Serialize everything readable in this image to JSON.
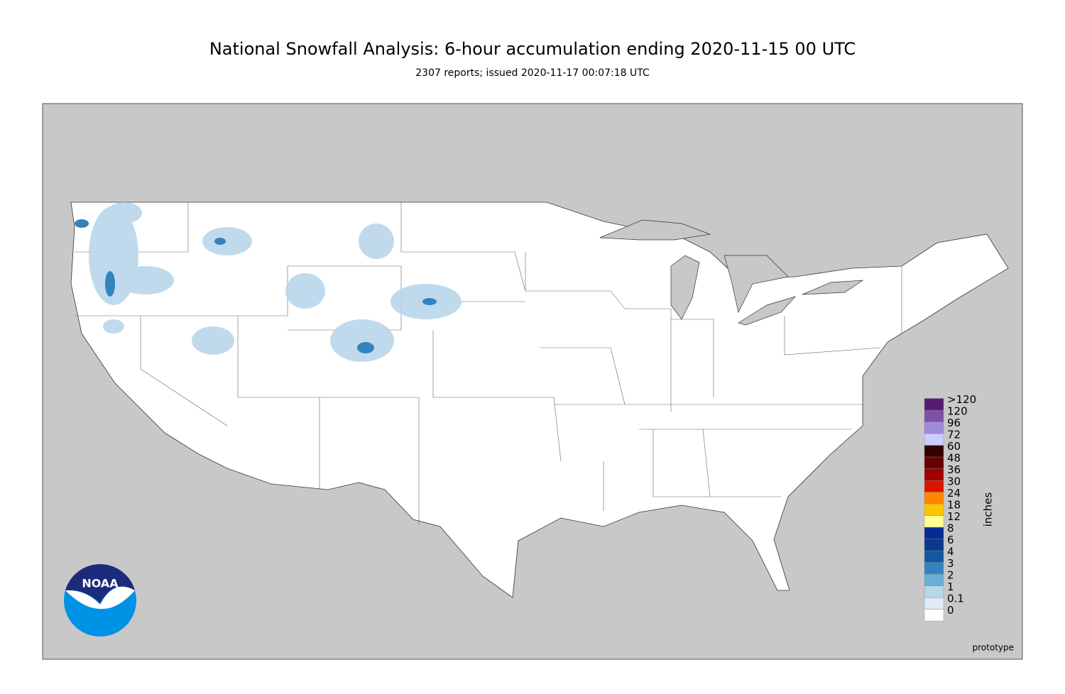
{
  "header": {
    "title": "National Snowfall Analysis: 6-hour accumulation ending 2020-11-15 00 UTC",
    "subtitle": "2307 reports; issued 2020-11-17 00:07:18 UTC"
  },
  "legend": {
    "unit": "inches",
    "items": [
      {
        "label": "0",
        "color": "#ffffff"
      },
      {
        "label": "0.1",
        "color": "#e1ebf5"
      },
      {
        "label": "1",
        "color": "#b9d6ea"
      },
      {
        "label": "2",
        "color": "#6baed6"
      },
      {
        "label": "3",
        "color": "#3383be"
      },
      {
        "label": "4",
        "color": "#1059a1"
      },
      {
        "label": "6",
        "color": "#08398e"
      },
      {
        "label": "8",
        "color": "#082a94"
      },
      {
        "label": "12",
        "color": "#ffff96"
      },
      {
        "label": "18",
        "color": "#ffc400"
      },
      {
        "label": "24",
        "color": "#ff8700"
      },
      {
        "label": "30",
        "color": "#db1400"
      },
      {
        "label": "36",
        "color": "#9e0000"
      },
      {
        "label": "48",
        "color": "#690000"
      },
      {
        "label": "60",
        "color": "#360000"
      },
      {
        "label": "72",
        "color": "#ccccff"
      },
      {
        "label": "96",
        "color": "#9f8cd8"
      },
      {
        "label": "120",
        "color": "#7c52a5"
      },
      {
        "label": ">120",
        "color": "#561c72"
      }
    ]
  },
  "logo": {
    "text": "NOAA"
  },
  "footer": {
    "note": "prototype"
  }
}
